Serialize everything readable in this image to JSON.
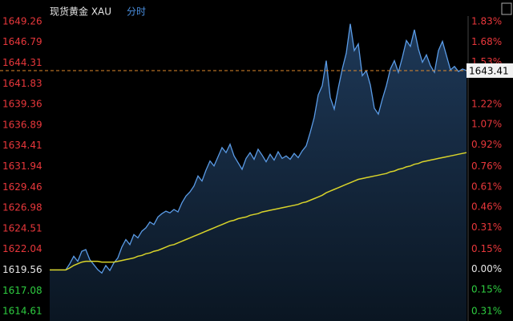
{
  "chart_data": {
    "type": "line",
    "title": "现货黄金 XAU",
    "subtitle": "分时",
    "ylim": [
      1614.61,
      1649.26
    ],
    "yticks": [
      1649.26,
      1646.79,
      1644.31,
      1641.83,
      1639.36,
      1636.89,
      1634.41,
      1631.94,
      1629.46,
      1626.98,
      1624.51,
      1622.04,
      1619.56,
      1617.08,
      1614.61
    ],
    "y2lim": [
      -0.31,
      1.83
    ],
    "y2ticks": [
      {
        "value": 1.83,
        "label": "1.83%"
      },
      {
        "value": 1.68,
        "label": "1.68%"
      },
      {
        "value": 1.53,
        "label": "1.53%"
      },
      {
        "value": 1.22,
        "label": "1.22%"
      },
      {
        "value": 1.07,
        "label": "1.07%"
      },
      {
        "value": 0.92,
        "label": "0.92%"
      },
      {
        "value": 0.76,
        "label": "0.76%"
      },
      {
        "value": 0.61,
        "label": "0.61%"
      },
      {
        "value": 0.46,
        "label": "0.46%"
      },
      {
        "value": 0.31,
        "label": "0.31%"
      },
      {
        "value": 0.15,
        "label": "0.15%"
      },
      {
        "value": 0,
        "label": "0.00%"
      },
      {
        "value": -0.15,
        "label": "0.15%"
      },
      {
        "value": -0.31,
        "label": "0.31%"
      }
    ],
    "reference_line": {
      "value": 1643.41,
      "color": "#e08a2c"
    },
    "up_color": "#e8373b",
    "down_color": "#2ecc40",
    "series": [
      {
        "color": "#5a9be6",
        "area": true,
        "values": [
          1619.56,
          1619.56,
          1619.56,
          1619.56,
          1619.56,
          1620.3,
          1621.2,
          1620.6,
          1621.8,
          1622.0,
          1620.8,
          1620.2,
          1619.6,
          1619.2,
          1620.1,
          1619.5,
          1620.4,
          1621.0,
          1622.3,
          1623.2,
          1622.6,
          1623.8,
          1623.4,
          1624.2,
          1624.6,
          1625.3,
          1625.0,
          1625.9,
          1626.3,
          1626.6,
          1626.4,
          1626.8,
          1626.5,
          1627.6,
          1628.4,
          1628.9,
          1629.6,
          1630.8,
          1630.2,
          1631.5,
          1632.6,
          1632.0,
          1633.1,
          1634.2,
          1633.6,
          1634.6,
          1633.2,
          1632.4,
          1631.6,
          1632.9,
          1633.6,
          1632.8,
          1634.0,
          1633.3,
          1632.5,
          1633.4,
          1632.7,
          1633.7,
          1632.9,
          1633.2,
          1632.8,
          1633.5,
          1633.0,
          1633.8,
          1634.4,
          1636.0,
          1637.8,
          1640.5,
          1641.6,
          1644.6,
          1640.2,
          1638.8,
          1641.3,
          1643.6,
          1645.5,
          1649.0,
          1645.8,
          1646.6,
          1642.8,
          1643.4,
          1641.7,
          1638.9,
          1638.2,
          1640.0,
          1641.6,
          1643.6,
          1644.6,
          1643.2,
          1645.0,
          1647.0,
          1646.3,
          1648.3,
          1646.0,
          1644.4,
          1645.3,
          1644.0,
          1643.2,
          1645.8,
          1646.9,
          1645.2,
          1643.5,
          1643.9,
          1643.3,
          1643.6,
          1643.41
        ]
      },
      {
        "color": "#d8d32a",
        "values": [
          1619.56,
          1619.56,
          1619.56,
          1619.56,
          1619.56,
          1619.8,
          1620.1,
          1620.3,
          1620.5,
          1620.6,
          1620.6,
          1620.6,
          1620.6,
          1620.5,
          1620.5,
          1620.5,
          1620.5,
          1620.6,
          1620.7,
          1620.8,
          1620.9,
          1621.0,
          1621.2,
          1621.3,
          1621.5,
          1621.6,
          1621.8,
          1621.9,
          1622.1,
          1622.3,
          1622.5,
          1622.6,
          1622.8,
          1623.0,
          1623.2,
          1623.4,
          1623.6,
          1623.8,
          1624.0,
          1624.2,
          1624.4,
          1624.6,
          1624.8,
          1625.0,
          1625.2,
          1625.4,
          1625.5,
          1625.7,
          1625.8,
          1625.9,
          1626.1,
          1626.2,
          1626.3,
          1626.5,
          1626.6,
          1626.7,
          1626.8,
          1626.9,
          1627.0,
          1627.1,
          1627.2,
          1627.3,
          1627.4,
          1627.6,
          1627.7,
          1627.9,
          1628.1,
          1628.3,
          1628.5,
          1628.8,
          1629.0,
          1629.2,
          1629.4,
          1629.6,
          1629.8,
          1630.0,
          1630.2,
          1630.4,
          1630.5,
          1630.6,
          1630.7,
          1630.8,
          1630.9,
          1631.0,
          1631.1,
          1631.3,
          1631.4,
          1631.6,
          1631.7,
          1631.9,
          1632.0,
          1632.2,
          1632.3,
          1632.5,
          1632.6,
          1632.7,
          1632.8,
          1632.9,
          1633.0,
          1633.1,
          1633.2,
          1633.3,
          1633.4,
          1633.5,
          1633.6
        ]
      }
    ]
  }
}
